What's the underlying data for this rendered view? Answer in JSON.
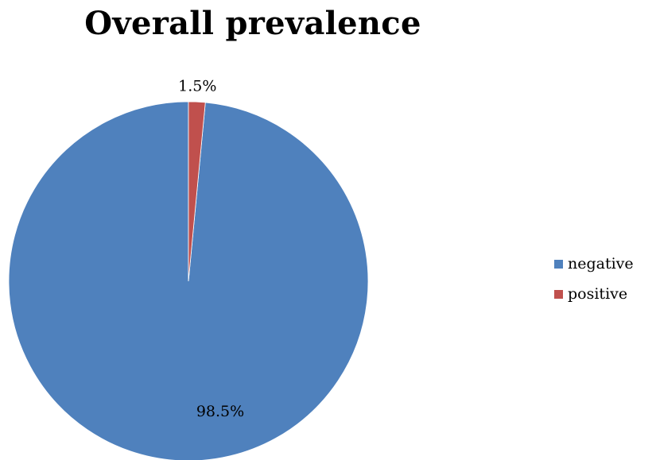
{
  "chart_data": {
    "type": "pie",
    "title": "Overall prevalence",
    "slices": [
      {
        "label": "negative",
        "value": 98.5,
        "display": "98.5%",
        "color": "#4F81BD"
      },
      {
        "label": "positive",
        "value": 1.5,
        "display": "1.5%",
        "color": "#C0504D"
      }
    ],
    "legend_position": "right"
  }
}
